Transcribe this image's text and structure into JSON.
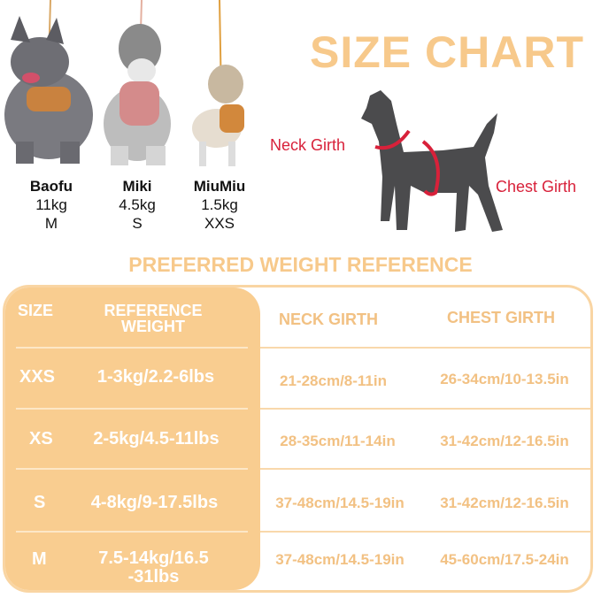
{
  "title": "SIZE CHART",
  "dogs": [
    {
      "name": "Baofu",
      "weight": "11kg",
      "size": "M"
    },
    {
      "name": "Miki",
      "weight": "4.5kg",
      "size": "S"
    },
    {
      "name": "MiuMiu",
      "weight": "1.5kg",
      "size": "XXS"
    }
  ],
  "diagram": {
    "neck_label": "Neck Girth",
    "chest_label": "Chest Girth",
    "accent": "#d8213a"
  },
  "subtitle": "PREFERRED WEIGHT REFERENCE",
  "table": {
    "headers": {
      "size": "SIZE",
      "weight": "REFERENCE WEIGHT",
      "neck": "NECK GIRTH",
      "chest": "CHEST GIRTH"
    },
    "rows": [
      {
        "size": "XXS",
        "weight": "1-3kg/2.2-6lbs",
        "neck": "21-28cm/8-11in",
        "chest": "26-34cm/10-13.5in"
      },
      {
        "size": "XS",
        "weight": "2-5kg/4.5-11lbs",
        "neck": "28-35cm/11-14in",
        "chest": "31-42cm/12-16.5in"
      },
      {
        "size": "S",
        "weight": "4-8kg/9-17.5lbs",
        "neck": "37-48cm/14.5-19in",
        "chest": "31-42cm/12-16.5in"
      },
      {
        "size": "M",
        "weight": "7.5-14kg/16.5 -31lbs",
        "neck": "37-48cm/14.5-19in",
        "chest": "45-60cm/17.5-24in"
      }
    ]
  },
  "colors": {
    "accent": "#f9cd90",
    "text": "#f2c183"
  }
}
